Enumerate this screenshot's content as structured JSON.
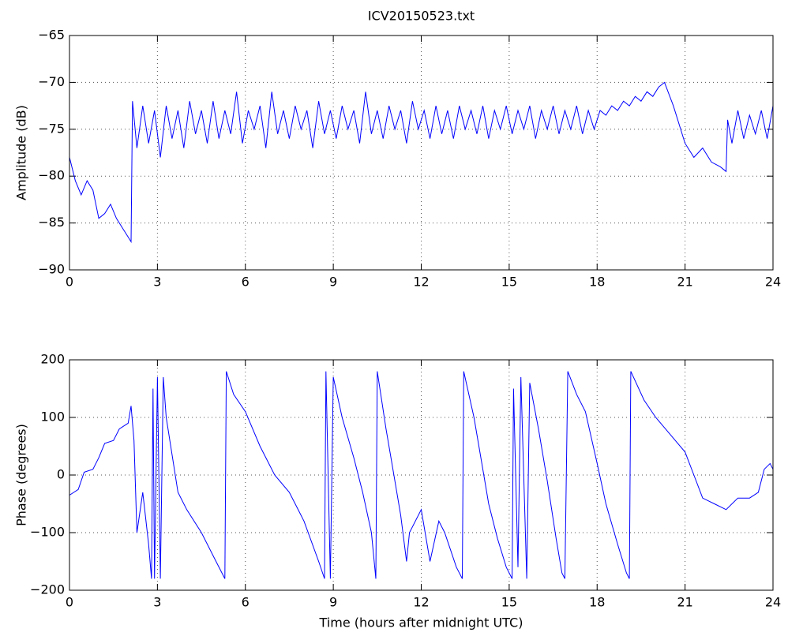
{
  "chart_data": [
    {
      "type": "line",
      "title": "ICV20150523.txt",
      "ylabel": "Amplitude (dB)",
      "grid": true,
      "xlim": [
        0,
        24
      ],
      "xticks": [
        0,
        3,
        6,
        9,
        12,
        15,
        18,
        21,
        24
      ],
      "ylim": [
        -90,
        -65
      ],
      "yticks": [
        {
          "value": -90,
          "label": "−90"
        },
        {
          "value": -85,
          "label": "−85"
        },
        {
          "value": -80,
          "label": "−80"
        },
        {
          "value": -75,
          "label": "−75"
        },
        {
          "value": -70,
          "label": "−70"
        },
        {
          "value": -65,
          "label": "−65"
        }
      ],
      "x": [
        0,
        0.2,
        0.4,
        0.6,
        0.8,
        1.0,
        1.2,
        1.4,
        1.6,
        1.8,
        2.0,
        2.1,
        2.15,
        2.3,
        2.5,
        2.7,
        2.9,
        3.1,
        3.3,
        3.5,
        3.7,
        3.9,
        4.1,
        4.3,
        4.5,
        4.7,
        4.9,
        5.1,
        5.3,
        5.5,
        5.7,
        5.9,
        6.1,
        6.3,
        6.5,
        6.7,
        6.9,
        7.1,
        7.3,
        7.5,
        7.7,
        7.9,
        8.1,
        8.3,
        8.5,
        8.7,
        8.9,
        9.1,
        9.3,
        9.5,
        9.7,
        9.9,
        10.1,
        10.3,
        10.5,
        10.7,
        10.9,
        11.1,
        11.3,
        11.5,
        11.7,
        11.9,
        12.1,
        12.3,
        12.5,
        12.7,
        12.9,
        13.1,
        13.3,
        13.5,
        13.7,
        13.9,
        14.1,
        14.3,
        14.5,
        14.7,
        14.9,
        15.1,
        15.3,
        15.5,
        15.7,
        15.9,
        16.1,
        16.3,
        16.5,
        16.7,
        16.9,
        17.1,
        17.3,
        17.5,
        17.7,
        17.9,
        18.1,
        18.3,
        18.5,
        18.7,
        18.9,
        19.1,
        19.3,
        19.5,
        19.7,
        19.9,
        20.1,
        20.3,
        20.6,
        21.0,
        21.3,
        21.6,
        21.9,
        22.2,
        22.4,
        22.45,
        22.6,
        22.8,
        23.0,
        23.2,
        23.4,
        23.6,
        23.8,
        24.0
      ],
      "series": [
        {
          "name": "Amplitude",
          "color": "#0000ff",
          "values": [
            -78,
            -80.5,
            -82,
            -80.5,
            -81.5,
            -84.5,
            -84,
            -83,
            -84.5,
            -85.5,
            -86.5,
            -87,
            -72,
            -77,
            -72.5,
            -76.5,
            -73,
            -78,
            -72.5,
            -76,
            -73,
            -77,
            -72,
            -75.5,
            -73,
            -76.5,
            -72,
            -76,
            -73,
            -75.5,
            -71,
            -76.5,
            -73,
            -75,
            -72.5,
            -77,
            -71,
            -75.5,
            -73,
            -76,
            -72.5,
            -75,
            -73,
            -77,
            -72,
            -75.5,
            -73,
            -76,
            -72.5,
            -75,
            -73,
            -76.5,
            -71,
            -75.5,
            -73,
            -76,
            -72.5,
            -75,
            -73,
            -76.5,
            -72,
            -75,
            -73,
            -76,
            -72.5,
            -75.5,
            -73,
            -76,
            -72.5,
            -75,
            -73,
            -75.5,
            -72.5,
            -76,
            -73,
            -75,
            -72.5,
            -75.5,
            -73,
            -75,
            -72.5,
            -76,
            -73,
            -75,
            -72.5,
            -75.5,
            -73,
            -75,
            -72.5,
            -75.5,
            -73,
            -75,
            -73,
            -73.5,
            -72.5,
            -73,
            -72,
            -72.5,
            -71.5,
            -72,
            -71,
            -71.5,
            -70.5,
            -70,
            -72.5,
            -76.5,
            -78,
            -77,
            -78.5,
            -79,
            -79.5,
            -74,
            -76.5,
            -73,
            -76,
            -73.5,
            -75.5,
            -73,
            -76,
            -72.5
          ]
        }
      ]
    },
    {
      "type": "line",
      "ylabel": "Phase (degrees)",
      "xlabel": "Time (hours after midnight UTC)",
      "grid": true,
      "xlim": [
        0,
        24
      ],
      "xticks": [
        0,
        3,
        6,
        9,
        12,
        15,
        18,
        21,
        24
      ],
      "ylim": [
        -200,
        200
      ],
      "yticks": [
        {
          "value": -200,
          "label": "−200"
        },
        {
          "value": -100,
          "label": "−100"
        },
        0,
        100,
        200
      ],
      "x": [
        0,
        0.3,
        0.5,
        0.8,
        1.0,
        1.2,
        1.5,
        1.7,
        2.0,
        2.1,
        2.2,
        2.3,
        2.5,
        2.7,
        2.8,
        2.85,
        2.9,
        3.0,
        3.1,
        3.2,
        3.3,
        3.7,
        4.0,
        4.5,
        5.0,
        5.3,
        5.35,
        5.6,
        6.0,
        6.5,
        7.0,
        7.5,
        8.0,
        8.5,
        8.7,
        8.75,
        8.9,
        9.0,
        9.3,
        9.7,
        10.0,
        10.3,
        10.45,
        10.5,
        10.8,
        11.0,
        11.3,
        11.5,
        11.6,
        12.0,
        12.3,
        12.6,
        12.8,
        13.2,
        13.4,
        13.45,
        13.8,
        14.1,
        14.3,
        14.6,
        14.9,
        15.1,
        15.15,
        15.3,
        15.4,
        15.6,
        15.7,
        16.0,
        16.3,
        16.6,
        16.8,
        16.9,
        17.0,
        17.3,
        17.6,
        18.0,
        18.3,
        18.7,
        19.0,
        19.1,
        19.15,
        19.6,
        20.0,
        20.5,
        21.0,
        21.3,
        21.6,
        22.0,
        22.4,
        22.8,
        23.2,
        23.5,
        23.7,
        23.9,
        24.0
      ],
      "series": [
        {
          "name": "Phase",
          "color": "#0000ff",
          "values": [
            -35,
            -25,
            5,
            10,
            30,
            55,
            60,
            80,
            90,
            120,
            60,
            -100,
            -30,
            -120,
            -180,
            150,
            -180,
            170,
            -180,
            170,
            100,
            -30,
            -60,
            -100,
            -150,
            -180,
            180,
            140,
            110,
            50,
            0,
            -30,
            -80,
            -150,
            -180,
            180,
            -180,
            170,
            100,
            30,
            -30,
            -100,
            -180,
            180,
            80,
            20,
            -70,
            -150,
            -100,
            -60,
            -150,
            -80,
            -100,
            -160,
            -180,
            180,
            100,
            10,
            -50,
            -110,
            -160,
            -180,
            150,
            -160,
            170,
            -180,
            160,
            80,
            -10,
            -110,
            -170,
            -180,
            180,
            140,
            110,
            20,
            -50,
            -120,
            -170,
            -180,
            180,
            130,
            100,
            70,
            40,
            0,
            -40,
            -50,
            -60,
            -40,
            -40,
            -30,
            10,
            20,
            10
          ]
        }
      ]
    }
  ]
}
